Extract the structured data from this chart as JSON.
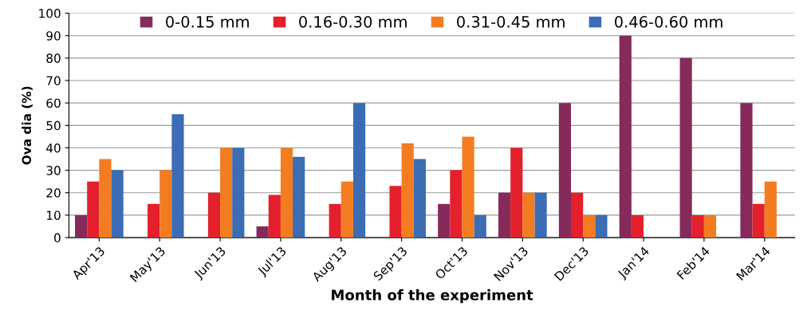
{
  "chart_data": {
    "type": "bar",
    "xlabel": "Month of the experiment",
    "ylabel": "Ova dia (%)",
    "categories": [
      "Apr'13",
      "May'13",
      "Jun'13",
      "Jul'13",
      "Aug'13",
      "Sep'13",
      "Oct'13",
      "Nov'13",
      "Dec'13",
      "Jan'14",
      "Feb'14",
      "Mar'14"
    ],
    "series": [
      {
        "name": "0-0.15 mm",
        "color": "#862a5c",
        "values": [
          10,
          0,
          0,
          5,
          0,
          0,
          15,
          20,
          60,
          90,
          80,
          60
        ]
      },
      {
        "name": "0.16-0.30 mm",
        "color": "#e3202b",
        "values": [
          25,
          15,
          20,
          19,
          15,
          23,
          30,
          40,
          20,
          10,
          10,
          15
        ]
      },
      {
        "name": "0.31-0.45 mm",
        "color": "#f47c20",
        "values": [
          35,
          30,
          40,
          40,
          25,
          42,
          45,
          20,
          10,
          0,
          10,
          25
        ]
      },
      {
        "name": "0.46-0.60 mm",
        "color": "#3b6cb4",
        "values": [
          30,
          55,
          40,
          36,
          60,
          35,
          10,
          20,
          10,
          0,
          0,
          0
        ]
      }
    ],
    "ylim": [
      0,
      100
    ],
    "yticks": [
      0,
      10,
      20,
      30,
      40,
      50,
      60,
      70,
      80,
      90,
      100
    ],
    "grid": "y",
    "legend": "top"
  }
}
